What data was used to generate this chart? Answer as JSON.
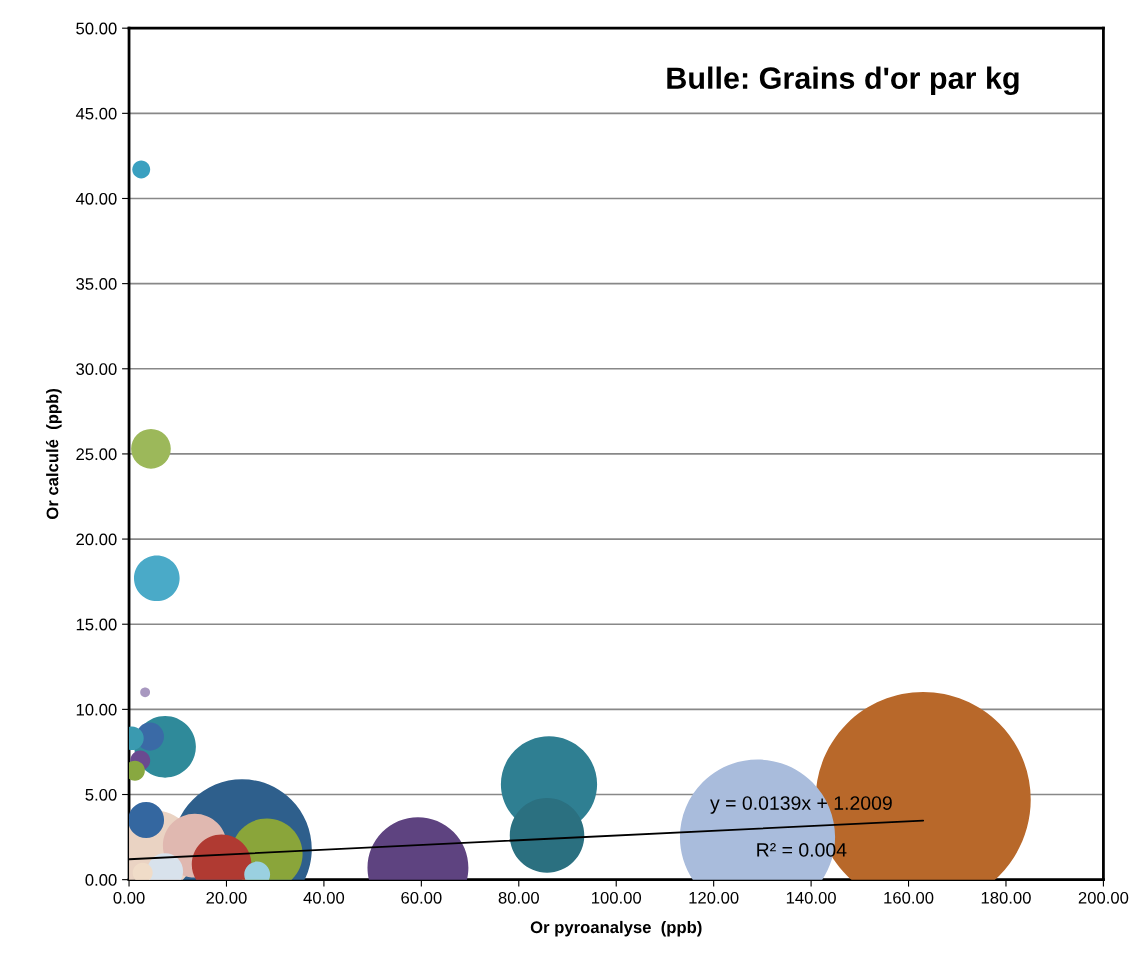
{
  "chart_data": {
    "type": "bubble",
    "title": "Bulle: Grains d'or par kg",
    "xlabel": "Or pyroanalyse  (ppb)",
    "ylabel": "Or calculé  (ppb)",
    "xlim": [
      0,
      200
    ],
    "ylim": [
      0,
      50
    ],
    "xticks": [
      {
        "value": 0,
        "label": "0.00"
      },
      {
        "value": 20,
        "label": "20.00"
      },
      {
        "value": 40,
        "label": "40.00"
      },
      {
        "value": 60,
        "label": "60.00"
      },
      {
        "value": 80,
        "label": "80.00"
      },
      {
        "value": 100,
        "label": "100.00"
      },
      {
        "value": 120,
        "label": "120.00"
      },
      {
        "value": 140,
        "label": "140.00"
      },
      {
        "value": 160,
        "label": "160.00"
      },
      {
        "value": 180,
        "label": "180.00"
      },
      {
        "value": 200,
        "label": "200.00"
      }
    ],
    "yticks": [
      {
        "value": 0,
        "label": "0.00"
      },
      {
        "value": 5,
        "label": "5.00"
      },
      {
        "value": 10,
        "label": "10.00"
      },
      {
        "value": 15,
        "label": "15.00"
      },
      {
        "value": 20,
        "label": "20.00"
      },
      {
        "value": 25,
        "label": "25.00"
      },
      {
        "value": 30,
        "label": "30.00"
      },
      {
        "value": 35,
        "label": "35.00"
      },
      {
        "value": 40,
        "label": "40.00"
      },
      {
        "value": 45,
        "label": "45.00"
      },
      {
        "value": 50,
        "label": "50.00"
      }
    ],
    "grid": "y",
    "legend": false,
    "series": [
      {
        "x": [
          163,
          129,
          86.2,
          85.8,
          23.2,
          59.3,
          5.3,
          28.3,
          13.5,
          19,
          7.4,
          5.7,
          4.5,
          3.5,
          7.4,
          4.3,
          0.6,
          2.3,
          1.2,
          26.3,
          2.5,
          3.3,
          2.8
        ],
        "values": [
          4.7,
          2.5,
          5.6,
          2.6,
          1.8,
          0.7,
          1.7,
          1.5,
          2.0,
          0.9,
          7.8,
          17.7,
          25.3,
          3.5,
          0.5,
          8.4,
          8.3,
          7.0,
          6.4,
          0.3,
          41.7,
          11.0,
          0.4
        ],
        "sizes": [
          1,
          0.52,
          0.2,
          0.12,
          0.42,
          0.22,
          0.14,
          0.11,
          0.088,
          0.077,
          0.082,
          0.045,
          0.034,
          0.028,
          0.028,
          0.017,
          0.012,
          0.0086,
          0.0086,
          0.0145,
          0.0069,
          0.0021,
          0.0086
        ],
        "colors": [
          "#b8682a",
          "#a9bcdc",
          "#2f7f92",
          "#2b7080",
          "#2e5f8c",
          "#5e4380",
          "#ead3c3",
          "#8aa53a",
          "#e0b8b0",
          "#b03a32",
          "#2f8a9a",
          "#4aaac8",
          "#9cb85a",
          "#3467a0",
          "#d8e2ec",
          "#3a6aa6",
          "#3a9ab0",
          "#6a4a90",
          "#88a840",
          "#9ad0e0",
          "#3aa0c0",
          "#a898c0",
          "#f0dcc8"
        ]
      },
      {
        "type": "line",
        "x": [
          0,
          163
        ],
        "values": [
          1.2,
          3.47
        ],
        "color": "#000000"
      }
    ],
    "annotations": [
      "y = 0.0139x + 1.2009",
      "R² = 0.004"
    ]
  }
}
